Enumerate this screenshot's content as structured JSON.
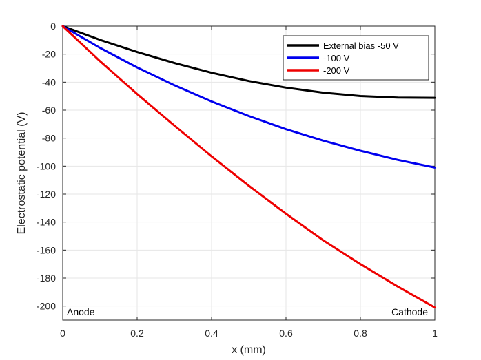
{
  "chart_data": {
    "type": "line",
    "title": "",
    "xlabel": "x (mm)",
    "ylabel": "Electrostatic potential (V)",
    "xlim": [
      0,
      1
    ],
    "ylim": [
      -210,
      0
    ],
    "xticks": [
      0,
      0.2,
      0.4,
      0.6,
      0.8,
      1
    ],
    "xtick_labels": [
      "0",
      "0.2",
      "0.4",
      "0.6",
      "0.8",
      "1"
    ],
    "yticks": [
      0,
      -20,
      -40,
      -60,
      -80,
      -100,
      -120,
      -140,
      -160,
      -180,
      -200
    ],
    "ytick_labels": [
      "0",
      "-20",
      "-40",
      "-60",
      "-80",
      "-100",
      "-120",
      "-140",
      "-160",
      "-180",
      "-200"
    ],
    "grid": true,
    "legend_position": "top-right",
    "annotations": {
      "left": "Anode",
      "right": "Cathode"
    },
    "x": [
      0,
      0.1,
      0.2,
      0.3,
      0.4,
      0.5,
      0.6,
      0.7,
      0.8,
      0.9,
      1.0
    ],
    "series": [
      {
        "name": "External bias -50 V",
        "color": "#000000",
        "values": [
          0,
          -9.8,
          -18.5,
          -26.3,
          -33.3,
          -39.2,
          -43.9,
          -47.5,
          -49.9,
          -51.0,
          -51.2
        ]
      },
      {
        "name": "-100 V",
        "color": "#0000ee",
        "values": [
          0,
          -15.5,
          -29.5,
          -42.2,
          -53.8,
          -64.2,
          -73.6,
          -81.8,
          -89.0,
          -95.5,
          -101.0
        ]
      },
      {
        "name": "-200 V",
        "color": "#ee0000",
        "values": [
          0,
          -25.0,
          -48.5,
          -71.0,
          -93.0,
          -114.0,
          -134.0,
          -153.0,
          -170.0,
          -186.0,
          -201.0
        ]
      }
    ]
  }
}
